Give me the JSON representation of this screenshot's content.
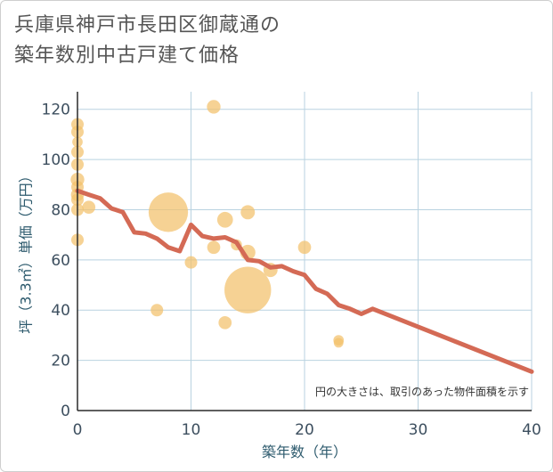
{
  "chart_data": {
    "type": "scatter",
    "title_lines": [
      "兵庫県神戸市長田区御蔵通の",
      "築年数別中古戸建て価格"
    ],
    "xlabel": "築年数（年）",
    "ylabel": "坪（3.3㎡）単価（万円）",
    "xlim": [
      0,
      40
    ],
    "ylim": [
      0,
      127
    ],
    "x_ticks": [
      0,
      10,
      20,
      30,
      40
    ],
    "y_ticks": [
      0,
      20,
      40,
      60,
      80,
      100,
      120
    ],
    "x_tick_labels": [
      "0",
      "10",
      "20",
      "30",
      "40"
    ],
    "y_tick_labels": [
      "0",
      "20",
      "40",
      "60",
      "80",
      "100",
      "120"
    ],
    "note": "円の大きさは、取引のあった物件面積を示す",
    "colors": {
      "bubble": "#f3c06b",
      "trend": "#d46a55",
      "grid": "#b9d2e0"
    },
    "bubbles": [
      {
        "x": 0,
        "y": 114,
        "size": 1
      },
      {
        "x": 0,
        "y": 111,
        "size": 1
      },
      {
        "x": 0,
        "y": 107,
        "size": 0.7
      },
      {
        "x": 0,
        "y": 103,
        "size": 1
      },
      {
        "x": 0,
        "y": 98,
        "size": 1
      },
      {
        "x": 0,
        "y": 92,
        "size": 1.2
      },
      {
        "x": 0,
        "y": 89,
        "size": 1
      },
      {
        "x": 0,
        "y": 86,
        "size": 1.1
      },
      {
        "x": 0,
        "y": 84,
        "size": 1
      },
      {
        "x": 0,
        "y": 80,
        "size": 1
      },
      {
        "x": 0,
        "y": 68,
        "size": 1
      },
      {
        "x": 1,
        "y": 81,
        "size": 1.1
      },
      {
        "x": 7,
        "y": 40,
        "size": 1
      },
      {
        "x": 8,
        "y": 79,
        "size": 10
      },
      {
        "x": 10,
        "y": 59,
        "size": 1
      },
      {
        "x": 12,
        "y": 121,
        "size": 1.2
      },
      {
        "x": 12,
        "y": 65,
        "size": 1.1
      },
      {
        "x": 13,
        "y": 76,
        "size": 1.6
      },
      {
        "x": 13,
        "y": 35,
        "size": 1.1
      },
      {
        "x": 14,
        "y": 66,
        "size": 0.8
      },
      {
        "x": 15,
        "y": 79,
        "size": 1.3
      },
      {
        "x": 15,
        "y": 63,
        "size": 1.5
      },
      {
        "x": 15,
        "y": 48,
        "size": 14
      },
      {
        "x": 17,
        "y": 56,
        "size": 1.3
      },
      {
        "x": 20,
        "y": 65,
        "size": 1.1
      },
      {
        "x": 23,
        "y": 28,
        "size": 0.7
      },
      {
        "x": 23,
        "y": 27,
        "size": 0.6
      }
    ],
    "trend_x": [
      0,
      1,
      2,
      3,
      4,
      5,
      6,
      7,
      8,
      9,
      10,
      11,
      12,
      13,
      14,
      15,
      16,
      17,
      18,
      19,
      20,
      21,
      22,
      23,
      24,
      25,
      26,
      40
    ],
    "trend_y": [
      87.5,
      86,
      84.5,
      80.5,
      79,
      71,
      70.5,
      68.5,
      65,
      63.5,
      74,
      69.5,
      68.5,
      69,
      67,
      60,
      59.5,
      57,
      57.5,
      55.5,
      54,
      48.5,
      46.5,
      42,
      40.5,
      38.5,
      40.5,
      15.5
    ]
  }
}
